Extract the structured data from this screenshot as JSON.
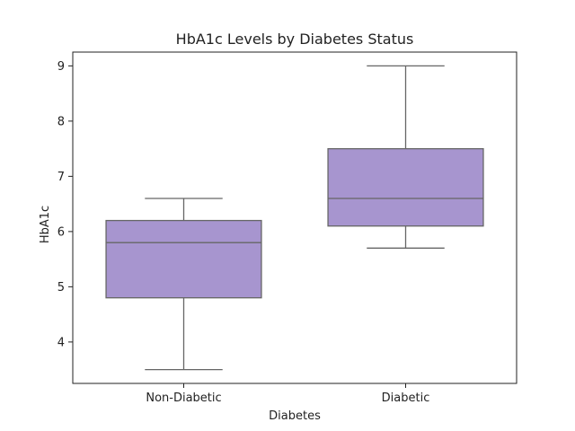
{
  "chart_data": {
    "type": "box",
    "title": "HbA1c Levels by Diabetes Status",
    "xlabel": "Diabetes",
    "ylabel": "HbA1c",
    "categories": [
      "Non-Diabetic",
      "Diabetic"
    ],
    "boxes": [
      {
        "category": "Non-Diabetic",
        "whisker_low": 3.5,
        "q1": 4.8,
        "median": 5.8,
        "q3": 6.2,
        "whisker_high": 6.6
      },
      {
        "category": "Diabetic",
        "whisker_low": 5.7,
        "q1": 6.1,
        "median": 6.6,
        "q3": 7.5,
        "whisker_high": 9.0
      }
    ],
    "ylim": [
      3.25,
      9.25
    ],
    "yticks": [
      4,
      5,
      6,
      7,
      8,
      9
    ],
    "grid": false,
    "legend": "none",
    "colors": {
      "box_fill": "#a795cf",
      "line": "#666666",
      "frame": "#222222"
    }
  }
}
